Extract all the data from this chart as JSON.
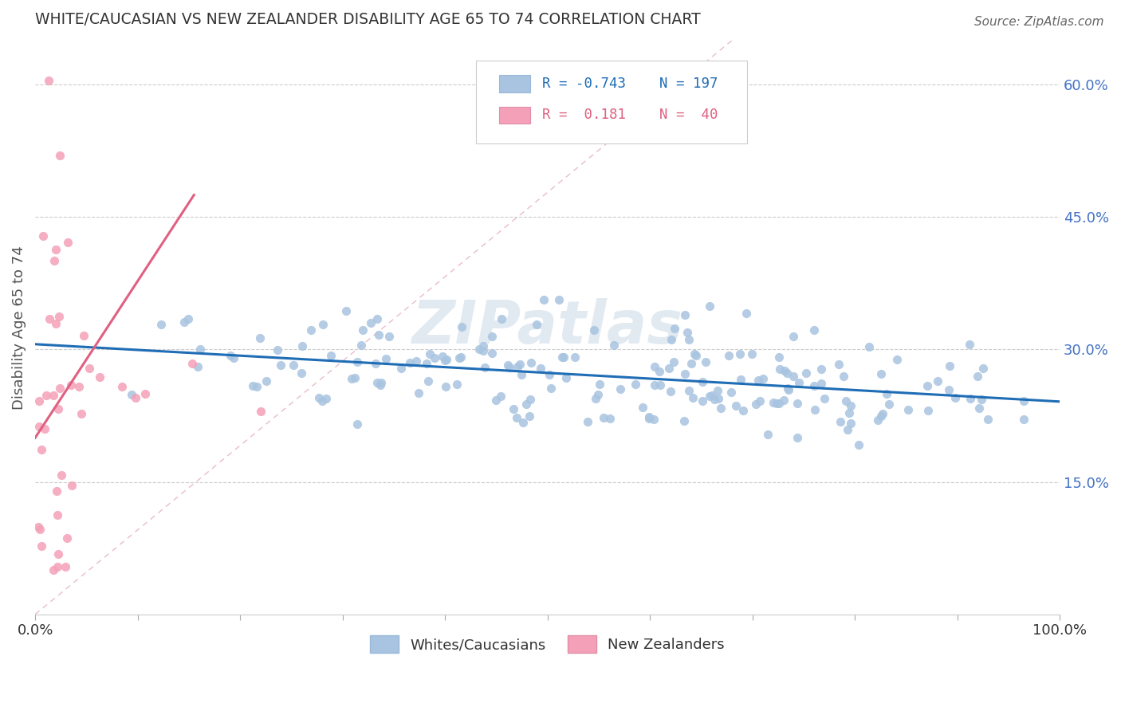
{
  "title": "WHITE/CAUCASIAN VS NEW ZEALANDER DISABILITY AGE 65 TO 74 CORRELATION CHART",
  "source": "Source: ZipAtlas.com",
  "ylabel": "Disability Age 65 to 74",
  "watermark": "ZIPatlas",
  "xlim": [
    0,
    1.0
  ],
  "ylim": [
    0,
    0.65
  ],
  "ytick_positions": [
    0.15,
    0.3,
    0.45,
    0.6
  ],
  "yticklabels": [
    "15.0%",
    "30.0%",
    "45.0%",
    "60.0%"
  ],
  "blue_R": -0.743,
  "blue_N": 197,
  "pink_R": 0.181,
  "pink_N": 40,
  "blue_color": "#a8c4e0",
  "pink_color": "#f4a0b8",
  "blue_line_color": "#1f6db5",
  "pink_line_color": "#e06080",
  "background_color": "#ffffff",
  "grid_color": "#cccccc",
  "figsize": [
    14.06,
    8.92
  ],
  "dpi": 100
}
